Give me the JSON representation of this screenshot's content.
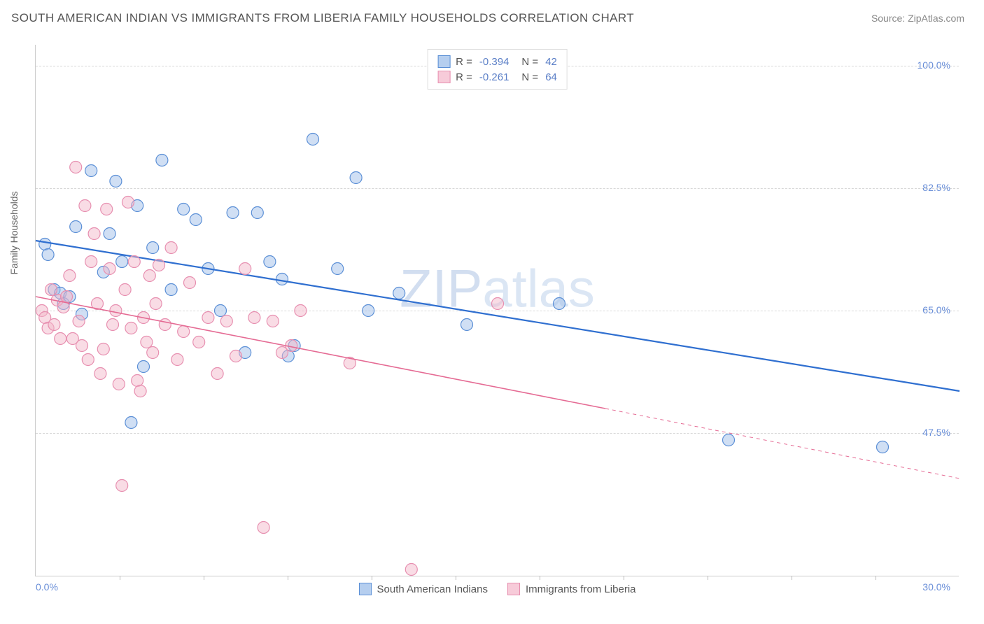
{
  "header": {
    "title": "SOUTH AMERICAN INDIAN VS IMMIGRANTS FROM LIBERIA FAMILY HOUSEHOLDS CORRELATION CHART",
    "source": "Source: ZipAtlas.com"
  },
  "watermark_a": "ZIP",
  "watermark_b": "atlas",
  "chart": {
    "type": "scatter",
    "ylabel": "Family Households",
    "xlim": [
      0.0,
      30.0
    ],
    "ylim": [
      27.0,
      103.0
    ],
    "x_ticks": [
      0.0,
      30.0
    ],
    "x_tick_labels": [
      "0.0%",
      "30.0%"
    ],
    "x_minor_ticks": [
      2.73,
      5.45,
      8.18,
      10.91,
      13.64,
      16.36,
      19.09,
      21.82,
      24.55,
      27.27
    ],
    "y_ticks": [
      47.5,
      65.0,
      82.5,
      100.0
    ],
    "y_tick_labels": [
      "47.5%",
      "65.0%",
      "82.5%",
      "100.0%"
    ],
    "background_color": "#ffffff",
    "grid_color": "#d8d8d8",
    "axis_color": "#cccccc",
    "label_color": "#6a8fd8",
    "marker_radius": 8.5,
    "marker_opacity": 0.48,
    "series": [
      {
        "name": "South American Indians",
        "fill": "#9cbce8",
        "stroke": "#5b8fd6",
        "trend_color": "#2f6fd0",
        "trend_width": 2.2,
        "r": -0.394,
        "n": 42,
        "points": [
          [
            0.3,
            74.5
          ],
          [
            0.4,
            73.0
          ],
          [
            0.6,
            68.0
          ],
          [
            0.8,
            67.5
          ],
          [
            0.9,
            66.0
          ],
          [
            1.1,
            67.0
          ],
          [
            1.3,
            77.0
          ],
          [
            1.5,
            64.5
          ],
          [
            1.8,
            85.0
          ],
          [
            2.2,
            70.5
          ],
          [
            2.4,
            76.0
          ],
          [
            2.6,
            83.5
          ],
          [
            2.8,
            72.0
          ],
          [
            3.1,
            49.0
          ],
          [
            3.3,
            80.0
          ],
          [
            3.5,
            57.0
          ],
          [
            3.8,
            74.0
          ],
          [
            4.1,
            86.5
          ],
          [
            4.4,
            68.0
          ],
          [
            4.8,
            79.5
          ],
          [
            5.2,
            78.0
          ],
          [
            5.6,
            71.0
          ],
          [
            6.0,
            65.0
          ],
          [
            6.4,
            79.0
          ],
          [
            6.8,
            59.0
          ],
          [
            7.2,
            79.0
          ],
          [
            7.6,
            72.0
          ],
          [
            8.0,
            69.5
          ],
          [
            8.2,
            58.5
          ],
          [
            8.4,
            60.0
          ],
          [
            9.0,
            89.5
          ],
          [
            9.8,
            71.0
          ],
          [
            10.4,
            84.0
          ],
          [
            10.8,
            65.0
          ],
          [
            11.8,
            67.5
          ],
          [
            14.0,
            63.0
          ],
          [
            17.0,
            66.0
          ],
          [
            22.5,
            46.5
          ],
          [
            27.5,
            45.5
          ]
        ],
        "trend": {
          "x1": 0.0,
          "y1": 75.0,
          "x2": 30.0,
          "y2": 53.5
        }
      },
      {
        "name": "Immigrants from Liberia",
        "fill": "#f3b6c9",
        "stroke": "#e78fb0",
        "trend_color": "#e56b94",
        "trend_width": 1.6,
        "r": -0.261,
        "n": 64,
        "points": [
          [
            0.2,
            65.0
          ],
          [
            0.3,
            64.0
          ],
          [
            0.4,
            62.5
          ],
          [
            0.5,
            68.0
          ],
          [
            0.6,
            63.0
          ],
          [
            0.7,
            66.5
          ],
          [
            0.8,
            61.0
          ],
          [
            0.9,
            65.5
          ],
          [
            1.0,
            67.0
          ],
          [
            1.1,
            70.0
          ],
          [
            1.2,
            61.0
          ],
          [
            1.3,
            85.5
          ],
          [
            1.4,
            63.5
          ],
          [
            1.5,
            60.0
          ],
          [
            1.6,
            80.0
          ],
          [
            1.7,
            58.0
          ],
          [
            1.8,
            72.0
          ],
          [
            1.9,
            76.0
          ],
          [
            2.0,
            66.0
          ],
          [
            2.1,
            56.0
          ],
          [
            2.2,
            59.5
          ],
          [
            2.3,
            79.5
          ],
          [
            2.4,
            71.0
          ],
          [
            2.5,
            63.0
          ],
          [
            2.6,
            65.0
          ],
          [
            2.7,
            54.5
          ],
          [
            2.8,
            40.0
          ],
          [
            2.9,
            68.0
          ],
          [
            3.0,
            80.5
          ],
          [
            3.1,
            62.5
          ],
          [
            3.2,
            72.0
          ],
          [
            3.3,
            55.0
          ],
          [
            3.4,
            53.5
          ],
          [
            3.5,
            64.0
          ],
          [
            3.6,
            60.5
          ],
          [
            3.7,
            70.0
          ],
          [
            3.8,
            59.0
          ],
          [
            3.9,
            66.0
          ],
          [
            4.0,
            71.5
          ],
          [
            4.2,
            63.0
          ],
          [
            4.4,
            74.0
          ],
          [
            4.6,
            58.0
          ],
          [
            4.8,
            62.0
          ],
          [
            5.0,
            69.0
          ],
          [
            5.3,
            60.5
          ],
          [
            5.6,
            64.0
          ],
          [
            5.9,
            56.0
          ],
          [
            6.2,
            63.5
          ],
          [
            6.5,
            58.5
          ],
          [
            6.8,
            71.0
          ],
          [
            7.1,
            64.0
          ],
          [
            7.4,
            34.0
          ],
          [
            7.7,
            63.5
          ],
          [
            8.0,
            59.0
          ],
          [
            8.3,
            60.0
          ],
          [
            8.6,
            65.0
          ],
          [
            10.2,
            57.5
          ],
          [
            12.2,
            28.0
          ],
          [
            15.0,
            66.0
          ]
        ],
        "trend": {
          "x1": 0.0,
          "y1": 67.0,
          "x2": 18.5,
          "y2": 51.0,
          "x3": 30.0,
          "y3": 41.0
        }
      }
    ]
  },
  "legend_top": {
    "r_label": "R =",
    "n_label": "N ="
  },
  "legend_bottom": {
    "items": [
      "South American Indians",
      "Immigrants from Liberia"
    ]
  }
}
